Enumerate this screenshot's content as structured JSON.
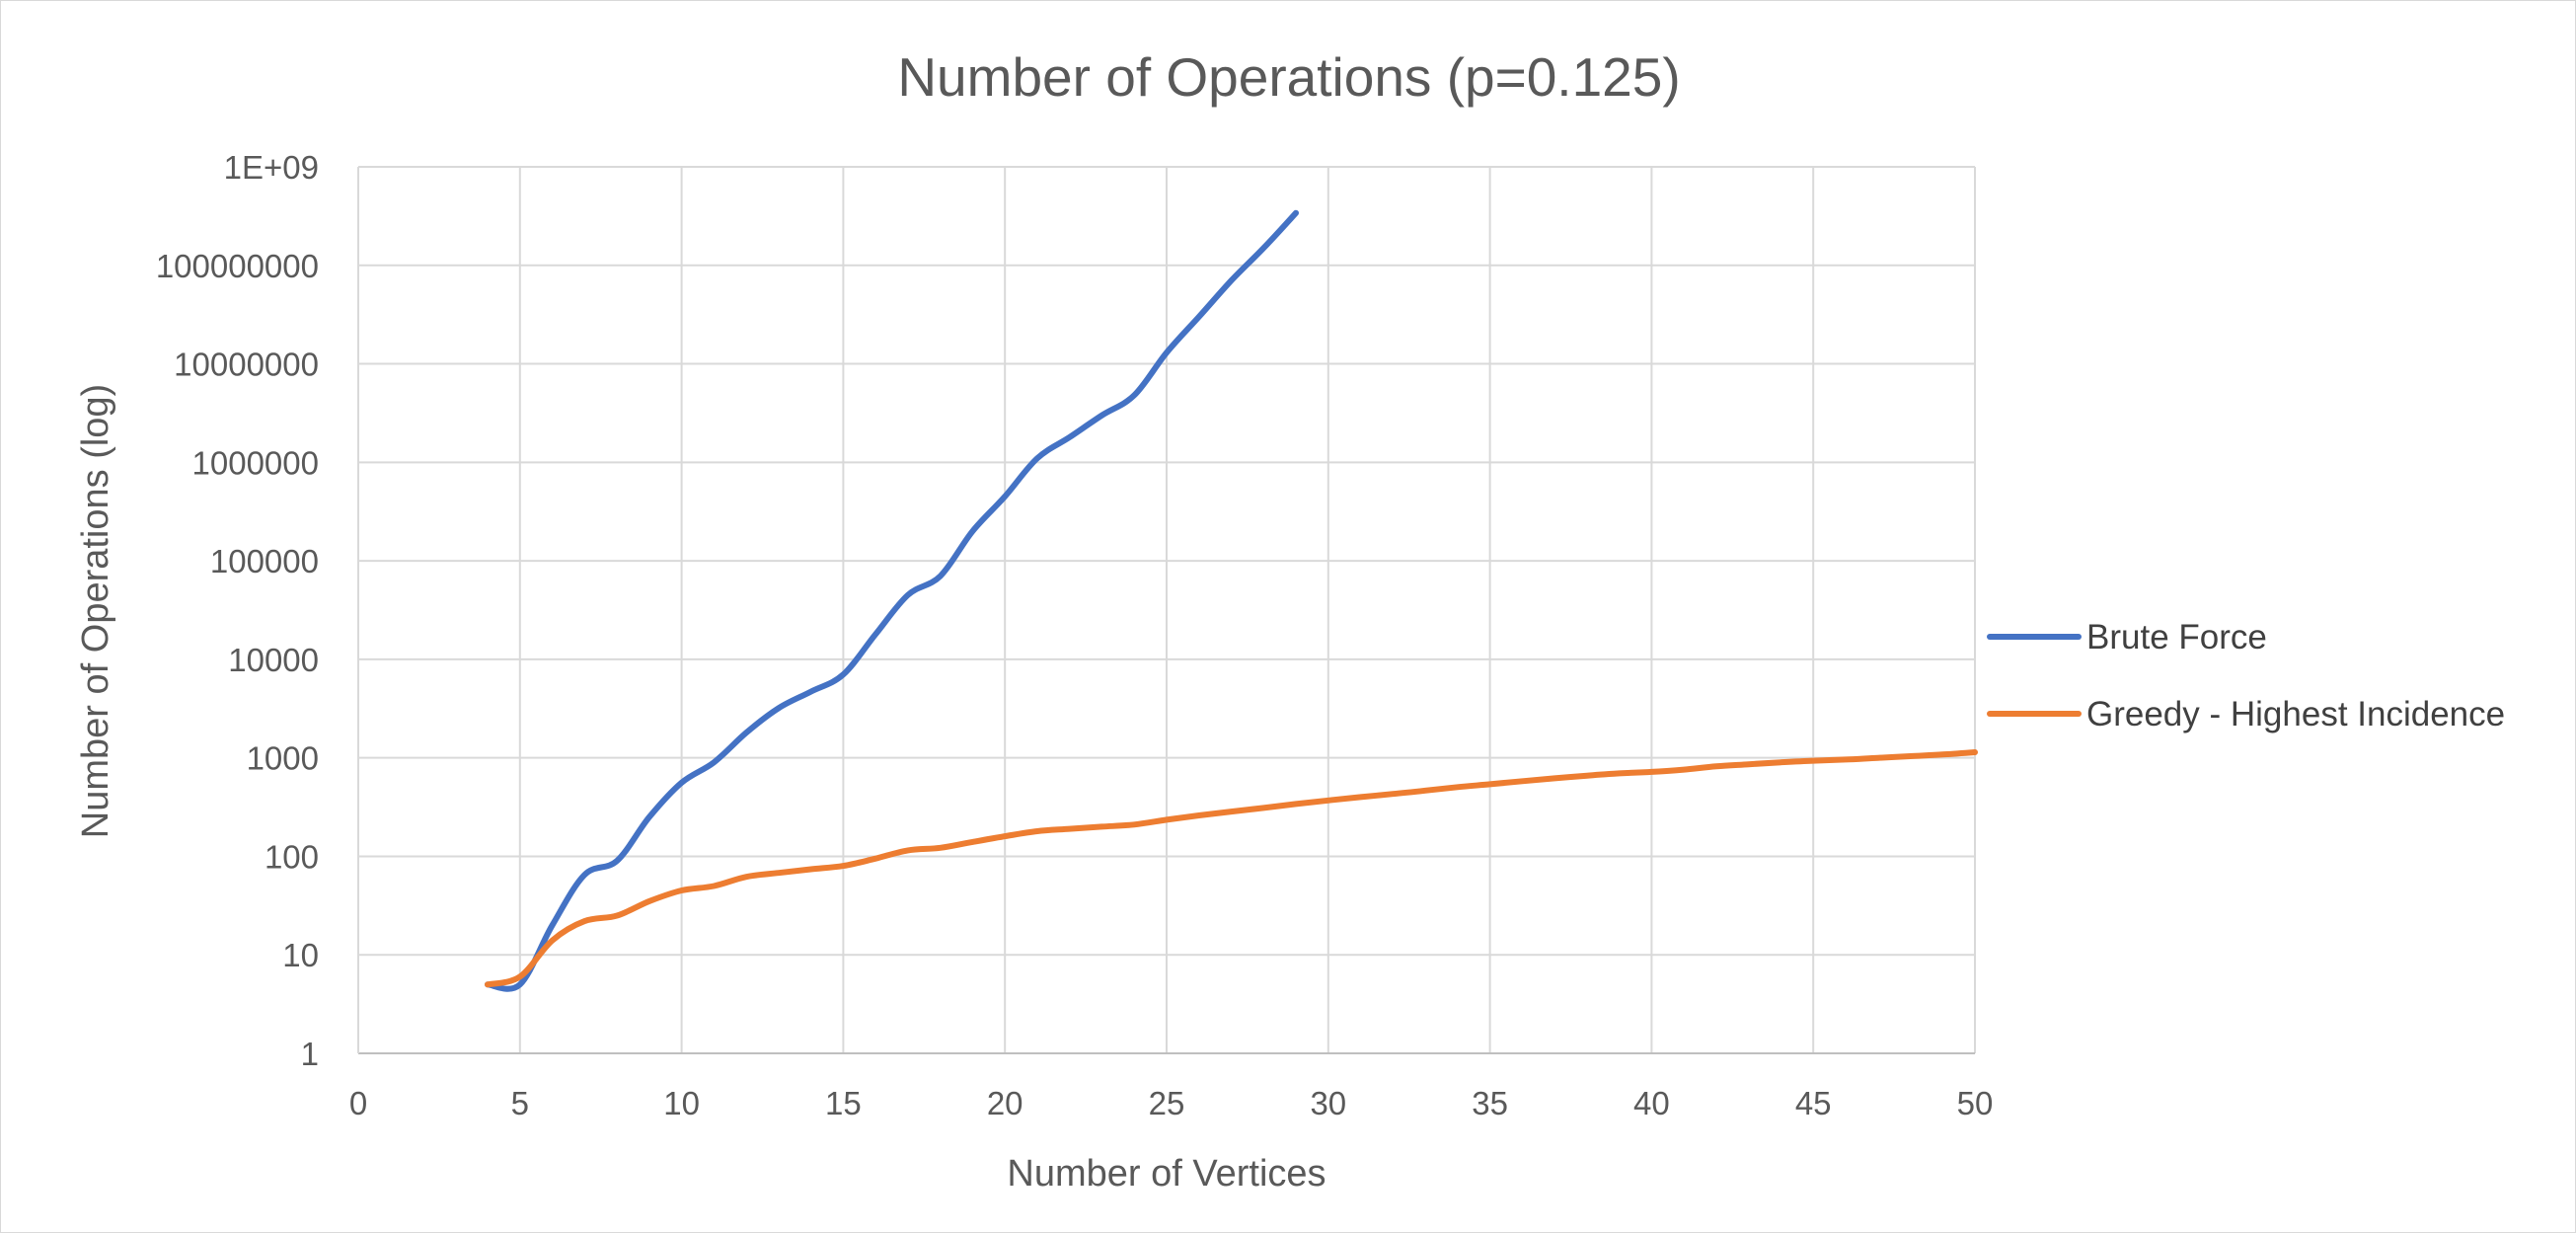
{
  "chart_data": {
    "type": "line",
    "title": "Number of Operations (p=0.125)",
    "xlabel": "Number of Vertices",
    "ylabel": "Number of Operations (log)",
    "xlim": [
      0,
      50
    ],
    "ylim": [
      1,
      1000000000
    ],
    "yscale": "log",
    "grid": true,
    "legend_position": "right",
    "x_ticks": [
      "0",
      "5",
      "10",
      "15",
      "20",
      "25",
      "30",
      "35",
      "40",
      "45",
      "50"
    ],
    "y_ticks": [
      "1",
      "10",
      "100",
      "1000",
      "10000",
      "100000",
      "1000000",
      "10000000",
      "100000000",
      "1E+09"
    ],
    "series": [
      {
        "name": "Brute Force",
        "color": "#4472c4",
        "x": [
          4,
          5,
          6,
          7,
          8,
          9,
          10,
          11,
          12,
          13,
          14,
          15,
          16,
          17,
          18,
          19,
          20,
          21,
          22,
          23,
          24,
          25,
          26,
          27,
          28,
          29
        ],
        "y": [
          5,
          5,
          20,
          65,
          90,
          250,
          560,
          900,
          1800,
          3200,
          4700,
          7000,
          18000,
          45000,
          70000,
          200000,
          450000,
          1100000,
          1800000,
          3000000,
          4800000,
          13000000,
          30000000,
          70000000,
          150000000,
          340000000
        ]
      },
      {
        "name": "Greedy - Highest Incidence",
        "color": "#ed7d31",
        "x": [
          4,
          5,
          6,
          7,
          8,
          9,
          10,
          11,
          12,
          13,
          14,
          15,
          16,
          17,
          18,
          19,
          20,
          21,
          22,
          23,
          24,
          25,
          26,
          27,
          28,
          29,
          30,
          31,
          32,
          33,
          34,
          35,
          36,
          37,
          38,
          39,
          40,
          41,
          42,
          43,
          44,
          45,
          46,
          47,
          48,
          49,
          50
        ],
        "y": [
          5,
          6,
          14,
          22,
          25,
          35,
          45,
          50,
          62,
          68,
          74,
          80,
          95,
          115,
          122,
          140,
          160,
          180,
          190,
          200,
          210,
          235,
          260,
          285,
          310,
          340,
          370,
          400,
          430,
          465,
          505,
          540,
          580,
          620,
          660,
          695,
          720,
          760,
          820,
          860,
          900,
          935,
          960,
          1000,
          1040,
          1080,
          1140
        ]
      }
    ]
  }
}
